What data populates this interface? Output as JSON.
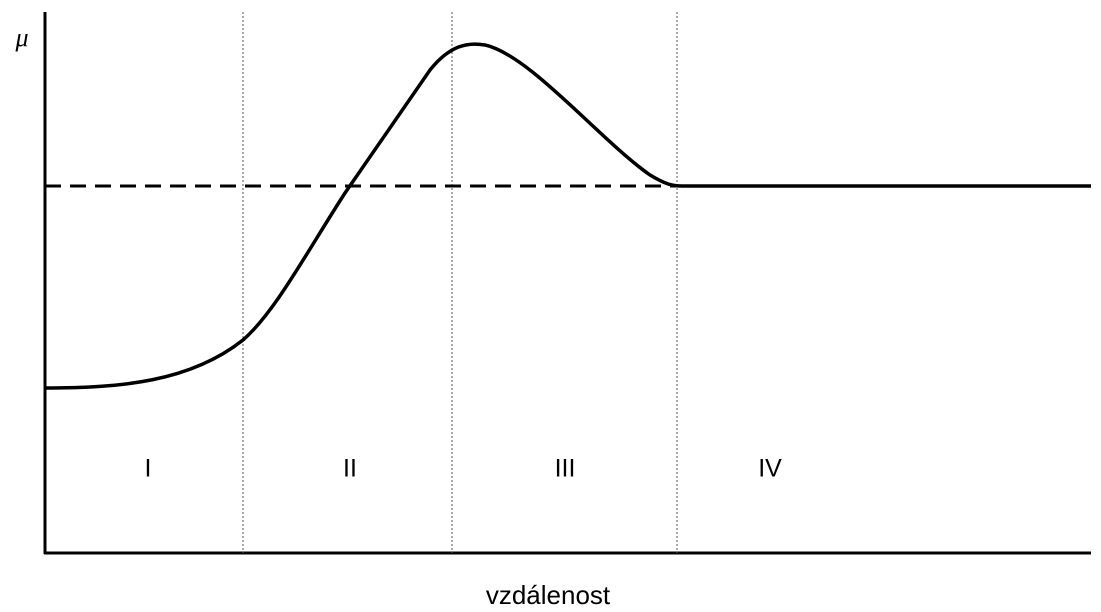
{
  "y_axis_label": "μ",
  "x_axis_label": "vzdálenost",
  "regions": [
    "I",
    "II",
    "III",
    "IV"
  ]
}
